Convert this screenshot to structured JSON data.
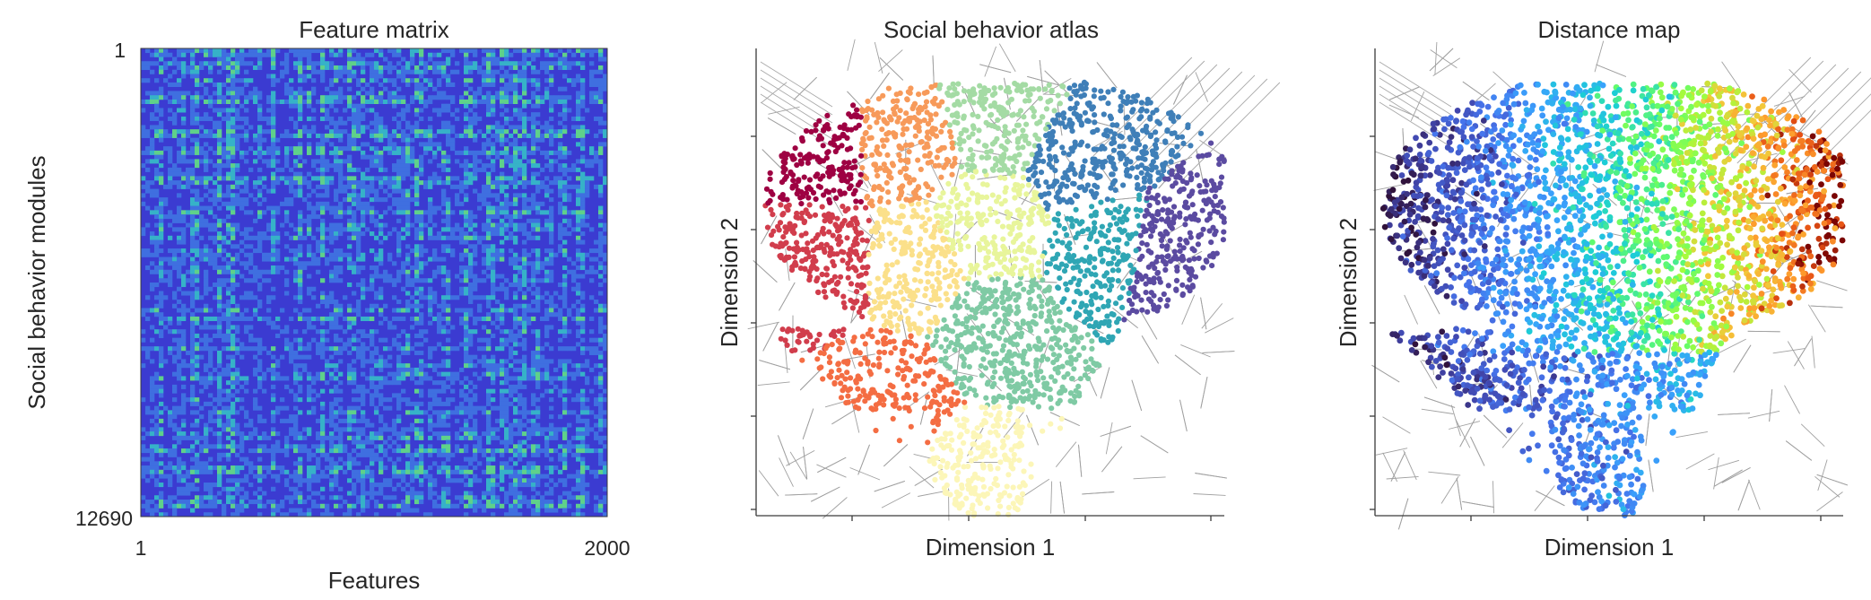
{
  "figure": {
    "panels": [
      {
        "id": "feature-matrix",
        "title": "Feature matrix",
        "xlabel": "Features",
        "ylabel": "Social behavior modules"
      },
      {
        "id": "behavior-atlas",
        "title": "Social behavior atlas",
        "xlabel": "Dimension 1",
        "ylabel": "Dimension 2"
      },
      {
        "id": "distance-map",
        "title": "Distance map",
        "xlabel": "Dimension 1",
        "ylabel": "Dimension 2"
      }
    ]
  },
  "chart_data": [
    {
      "type": "heatmap",
      "title": "Feature matrix",
      "xlabel": "Features",
      "ylabel": "Social behavior modules",
      "x_ticks": [
        "1",
        "2000"
      ],
      "y_ticks": [
        "1",
        "12690"
      ],
      "xlim": [
        1,
        2000
      ],
      "ylim": [
        1,
        12690
      ],
      "colormap": [
        "#3b3bd1",
        "#3f6fe0",
        "#36b2c8",
        "#5fd18a"
      ],
      "background_color": "#3b3bd1"
    },
    {
      "type": "scatter",
      "title": "Social behavior atlas",
      "xlabel": "Dimension 1",
      "ylabel": "Dimension 2",
      "x_ticks": [],
      "y_ticks": [],
      "clusters": [
        {
          "color": "#9e0142",
          "center": [
            -0.72,
            0.62
          ]
        },
        {
          "color": "#f79a5a",
          "center": [
            -0.38,
            0.62
          ]
        },
        {
          "color": "#a4dba4",
          "center": [
            0.02,
            0.72
          ]
        },
        {
          "color": "#3f7fb8",
          "center": [
            0.42,
            0.5
          ]
        },
        {
          "color": "#5b4ba1",
          "center": [
            0.78,
            0.12
          ]
        },
        {
          "color": "#d13d4c",
          "center": [
            -0.72,
            0.05
          ]
        },
        {
          "color": "#fbe08a",
          "center": [
            -0.32,
            0.05
          ]
        },
        {
          "color": "#e8f59b",
          "center": [
            0.0,
            0.22
          ]
        },
        {
          "color": "#2fa6b4",
          "center": [
            0.48,
            0.18
          ]
        },
        {
          "color": "#f46d43",
          "center": [
            -0.44,
            -0.48
          ]
        },
        {
          "color": "#7fcaa4",
          "center": [
            0.02,
            -0.2
          ]
        },
        {
          "color": "#fcf6b8",
          "center": [
            -0.05,
            -0.85
          ]
        }
      ]
    },
    {
      "type": "scatter",
      "title": "Distance map",
      "xlabel": "Dimension 1",
      "ylabel": "Dimension 2",
      "x_ticks": [],
      "y_ticks": [],
      "colormap": "turbo",
      "color_gradient": "left (dark blue) to right (dark red)"
    }
  ]
}
